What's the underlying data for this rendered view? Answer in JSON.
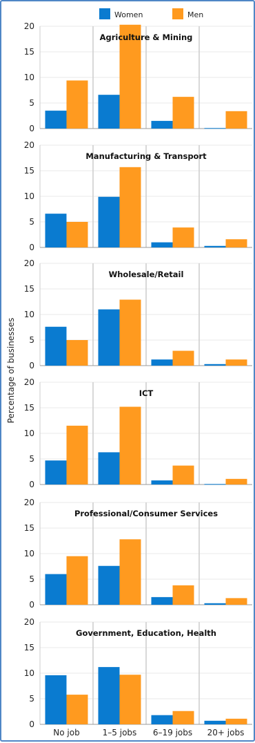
{
  "legend": [
    {
      "name": "Women",
      "color": "#0a7bd0"
    },
    {
      "name": "Men",
      "color": "#ff9a1f"
    }
  ],
  "ylabel": "Percentage of businesses",
  "chart_data": {
    "type": "bar",
    "categories": [
      "No job",
      "1–5 jobs",
      "6–19 jobs",
      "20+ jobs"
    ],
    "ylabel": "Percentage of businesses",
    "ylim": [
      0,
      20
    ],
    "yticks": [
      0,
      5,
      10,
      15,
      20
    ],
    "legend_position": "top",
    "panels": [
      {
        "title": "Agriculture & Mining",
        "series": [
          {
            "name": "Women",
            "values": [
              3.5,
              6.6,
              1.5,
              0.1
            ]
          },
          {
            "name": "Men",
            "values": [
              9.4,
              20.3,
              6.2,
              3.4
            ]
          }
        ]
      },
      {
        "title": "Manufacturing & Transport",
        "series": [
          {
            "name": "Women",
            "values": [
              6.6,
              9.9,
              1.0,
              0.3
            ]
          },
          {
            "name": "Men",
            "values": [
              5.0,
              15.7,
              3.9,
              1.6
            ]
          }
        ]
      },
      {
        "title": "Wholesale/Retail",
        "series": [
          {
            "name": "Women",
            "values": [
              7.6,
              11.0,
              1.2,
              0.3
            ]
          },
          {
            "name": "Men",
            "values": [
              5.0,
              12.9,
              2.9,
              1.2
            ]
          }
        ]
      },
      {
        "title": "ICT",
        "series": [
          {
            "name": "Women",
            "values": [
              4.7,
              6.3,
              0.8,
              0.1
            ]
          },
          {
            "name": "Men",
            "values": [
              11.5,
              15.2,
              3.7,
              1.1
            ]
          }
        ]
      },
      {
        "title": "Professional/Consumer Services",
        "series": [
          {
            "name": "Women",
            "values": [
              6.0,
              7.6,
              1.5,
              0.3
            ]
          },
          {
            "name": "Men",
            "values": [
              9.5,
              12.8,
              3.8,
              1.3
            ]
          }
        ]
      },
      {
        "title": "Government, Education, Health",
        "series": [
          {
            "name": "Women",
            "values": [
              9.6,
              11.2,
              1.8,
              0.7
            ]
          },
          {
            "name": "Men",
            "values": [
              5.8,
              9.7,
              2.6,
              1.1
            ]
          }
        ]
      }
    ]
  }
}
